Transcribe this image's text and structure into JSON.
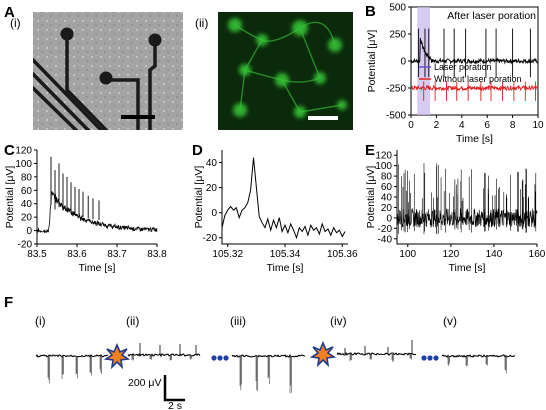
{
  "panels": {
    "A": "A",
    "A_i": "(i)",
    "A_ii": "(ii)",
    "B": "B",
    "C": "C",
    "D": "D",
    "E": "E",
    "F": "F"
  },
  "colors": {
    "micrograph_bg": "#9a9a9a",
    "electrode": "#1a1a1a",
    "fluor_bg": "#0b2a0b",
    "fluor_cell": "#37c837",
    "trace": "#000000",
    "laser_series": "#6a4fd6",
    "without_laser_series": "#e02020",
    "laser_highlight": "#c9b9f0",
    "spark_orange": "#f08020",
    "spark_blue": "#203a8a",
    "dots": "#1f3fa8"
  },
  "chart_data": [
    {
      "id": "B",
      "type": "line",
      "title": "After laser poration",
      "xlabel": "Time [s]",
      "ylabel": "Potential [μV]",
      "xlim": [
        0,
        10
      ],
      "ylim": [
        -500,
        500
      ],
      "xticks": [
        0,
        2,
        4,
        6,
        8,
        10
      ],
      "yticks": [
        -500,
        -250,
        0,
        250,
        500
      ],
      "series": [
        {
          "name": "Laser poration",
          "color": "#6a4fd6",
          "baseline": 0,
          "spikes": [
            0.6,
            1.1,
            1.4,
            2.6,
            3.4,
            4.3,
            5.9,
            6.7,
            8.0,
            9.4
          ],
          "spike_amp": 300
        },
        {
          "name": "Without laser poration",
          "color": "#e02020",
          "baseline": -250,
          "spikes": [
            1.0,
            1.9,
            2.8,
            3.6,
            4.5,
            5.5,
            6.3,
            7.2,
            8.1,
            9.0,
            9.8
          ],
          "spike_amp": -120
        }
      ],
      "highlight_x": [
        0.5,
        1.5
      ]
    },
    {
      "id": "C",
      "type": "line",
      "xlabel": "Time [s]",
      "ylabel": "Potential [μV]",
      "xlim": [
        83.5,
        83.8
      ],
      "ylim": [
        -20,
        120
      ],
      "xticks": [
        83.5,
        83.6,
        83.7,
        83.8
      ],
      "yticks": [
        -20,
        0,
        20,
        40,
        60,
        80,
        100,
        120
      ],
      "burst_start": 83.53,
      "burst_peak": 60,
      "decay_end": 83.78,
      "spikes": [
        83.535,
        83.545,
        83.555,
        83.565,
        83.575,
        83.585,
        83.595,
        83.605,
        83.615,
        83.628,
        83.64,
        83.655
      ],
      "spike_heights": [
        110,
        90,
        100,
        85,
        80,
        72,
        65,
        62,
        58,
        52,
        48,
        45
      ]
    },
    {
      "id": "D",
      "type": "line",
      "xlabel": "Time [s]",
      "ylabel": "Potential [μV]",
      "xlim": [
        105.318,
        105.362
      ],
      "ylim": [
        -25,
        50
      ],
      "xticks": [
        105.32,
        105.34,
        105.36
      ],
      "yticks": [
        -20,
        0,
        20,
        40
      ],
      "x": [
        105.318,
        105.319,
        105.32,
        105.321,
        105.322,
        105.323,
        105.324,
        105.325,
        105.326,
        105.327,
        105.328,
        105.329,
        105.33,
        105.331,
        105.332,
        105.333,
        105.334,
        105.335,
        105.336,
        105.337,
        105.338,
        105.339,
        105.34,
        105.341,
        105.342,
        105.343,
        105.344,
        105.345,
        105.346,
        105.347,
        105.348,
        105.349,
        105.35,
        105.351,
        105.352,
        105.353,
        105.354,
        105.355,
        105.356,
        105.357,
        105.358,
        105.359,
        105.36,
        105.361
      ],
      "y": [
        -12,
        -2,
        2,
        5,
        2,
        4,
        -4,
        2,
        4,
        8,
        18,
        44,
        20,
        -3,
        -8,
        -12,
        -5,
        -14,
        -6,
        -12,
        -4,
        -15,
        -10,
        -16,
        -9,
        -14,
        -20,
        -12,
        -15,
        -11,
        -18,
        -10,
        -14,
        -12,
        -17,
        -9,
        -15,
        -13,
        -18,
        -12,
        -16,
        -14,
        -19,
        -15
      ]
    },
    {
      "id": "E",
      "type": "line",
      "xlabel": "Time [s]",
      "ylabel": "Potential [μV]",
      "xlim": [
        95,
        160
      ],
      "ylim": [
        -50,
        130
      ],
      "xticks": [
        100,
        120,
        140,
        160
      ],
      "yticks": [
        -40,
        -20,
        0,
        20,
        40,
        60,
        80,
        100,
        120
      ],
      "noise": 18,
      "spike_count": 70,
      "spike_max": 120
    }
  ],
  "panel_F": {
    "labels": [
      "(i)",
      "(ii)",
      "(iii)",
      "(iv)",
      "(v)"
    ],
    "scale_v": "200 μV",
    "scale_t": "2 s"
  }
}
